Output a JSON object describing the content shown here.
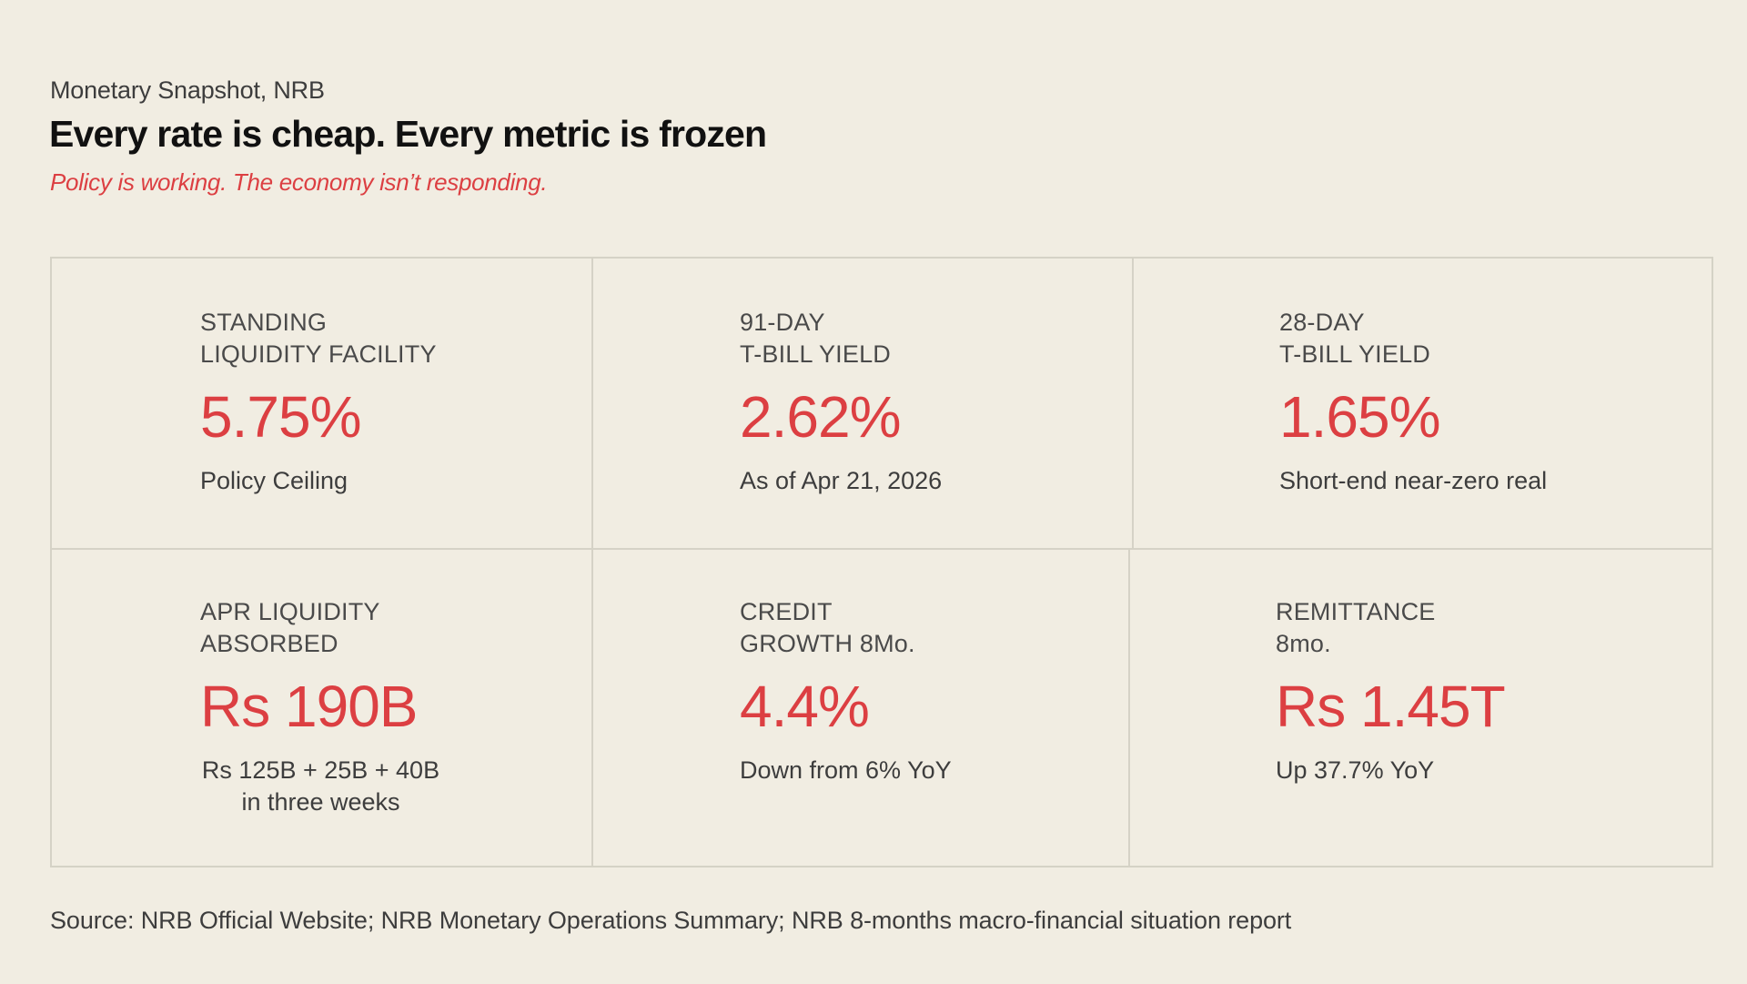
{
  "header": {
    "kicker": "Monetary Snapshot, NRB",
    "title": "Every rate is cheap. Every metric is frozen",
    "subtitle": "Policy is working. The economy isn’t responding."
  },
  "metrics": [
    {
      "label_line1": "STANDING",
      "label_line2": "LIQUIDITY FACILITY",
      "value": "5.75%",
      "note": "Policy Ceiling"
    },
    {
      "label_line1": "91-DAY",
      "label_line2": "T-BILL YIELD",
      "value": "2.62%",
      "note": "As of Apr 21, 2026"
    },
    {
      "label_line1": "28-DAY",
      "label_line2": "T-BILL YIELD",
      "value": "1.65%",
      "note": "Short-end near-zero real"
    },
    {
      "label_line1": "APR LIQUIDITY",
      "label_line2": "ABSORBED",
      "value": "Rs 190B",
      "note_line1": "Rs 125B + 25B + 40B",
      "note_line2": "in three weeks"
    },
    {
      "label_line1": "CREDIT",
      "label_line2": "GROWTH 8Mo.",
      "value": "4.4%",
      "note": "Down from 6% YoY"
    },
    {
      "label_line1": "REMITTANCE",
      "label_line2": "8mo.",
      "value": "Rs 1.45T",
      "note": "Up  37.7% YoY"
    }
  ],
  "footer": {
    "source": "Source: NRB Official Website; NRB Monetary Operations Summary; NRB 8-months macro-financial situation report"
  },
  "colors": {
    "background": "#f1ede2",
    "accent": "#dc3f42",
    "border": "#d5d2c6"
  }
}
